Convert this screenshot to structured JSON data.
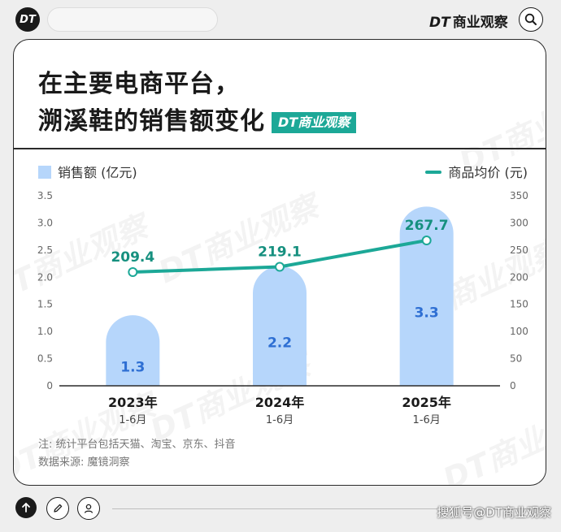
{
  "header": {
    "logo_text": "DT",
    "brand_dt": "DT",
    "brand_name": "商业观察",
    "icons": {
      "search": "search-icon"
    }
  },
  "card": {
    "title_line1": "在主要电商平台，",
    "title_line2": "溯溪鞋的销售额变化",
    "badge_dt": "DT",
    "badge_name": "商业观察",
    "watermark_text": "DT商业观察",
    "note": "注: 统计平台包括天猫、淘宝、京东、抖音",
    "source": "数据来源: 魔镜洞察"
  },
  "chart_data": {
    "type": "bar",
    "categories": [
      "2023年",
      "2024年",
      "2025年"
    ],
    "category_sublabels": [
      "1-6月",
      "1-6月",
      "1-6月"
    ],
    "series": [
      {
        "name": "销售额 (亿元)",
        "type": "bar",
        "axis": "left",
        "values": [
          1.3,
          2.2,
          3.3
        ],
        "data_labels": [
          "1.3",
          "2.2",
          "3.3"
        ],
        "color": "#b6d6fb",
        "label_color": "#2e6fd3"
      },
      {
        "name": "商品均价 (元)",
        "type": "line",
        "axis": "right",
        "values": [
          209.4,
          219.1,
          267.7
        ],
        "data_labels": [
          "209.4",
          "219.1",
          "267.7"
        ],
        "color": "#1ca897",
        "label_color": "#16907f"
      }
    ],
    "y_left": {
      "lim": [
        0,
        3.5
      ],
      "ticks": [
        "0",
        "0.5",
        "1.0",
        "1.5",
        "2.0",
        "2.5",
        "3.0",
        "3.5"
      ]
    },
    "y_right": {
      "lim": [
        0,
        350
      ],
      "ticks": [
        "0",
        "50",
        "100",
        "150",
        "200",
        "250",
        "300",
        "350"
      ]
    },
    "grid": false,
    "legend": "top"
  },
  "footer": {
    "text": "搜狐号@DT商业观察",
    "icons": {
      "up": "arrow-up-icon",
      "edit": "pencil-icon",
      "user": "user-icon"
    }
  }
}
